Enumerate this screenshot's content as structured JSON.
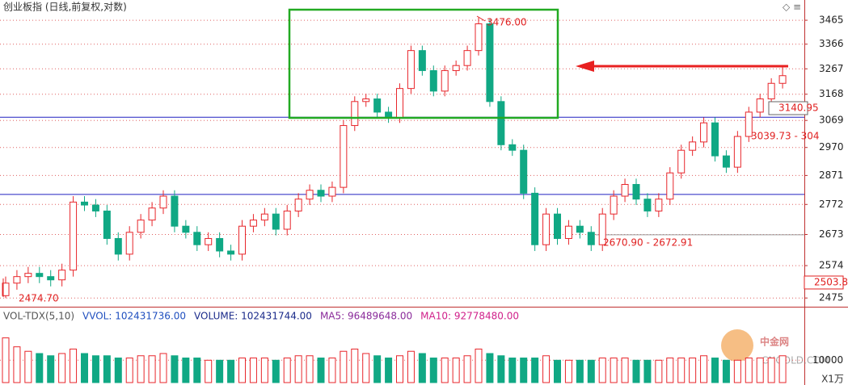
{
  "chart_data": {
    "type": "candlestick",
    "title": "创业板指 (日线,前复权,对数)",
    "log": true,
    "ylim": [
      2449,
      3551
    ],
    "yticks": [
      2475,
      2574,
      2673,
      2772,
      2871,
      2970,
      3069,
      3168,
      3267,
      3366,
      3465
    ],
    "grid": true,
    "up_color": "#e8262b",
    "down_color": "#10a884",
    "series": [
      {
        "name": "open",
        "values": [
          2482,
          2520,
          2540,
          2550,
          2540,
          2530,
          2560,
          2780,
          2770,
          2750,
          2660,
          2610,
          2680,
          2720,
          2760,
          2800,
          2700,
          2680,
          2640,
          2660,
          2620,
          2610,
          2700,
          2720,
          2740,
          2690,
          2750,
          2790,
          2820,
          2800,
          2830,
          3050,
          3140,
          3150,
          3100,
          3080,
          3190,
          3340,
          3260,
          3180,
          3260,
          3280,
          3340,
          3450,
          3140,
          2980,
          2960,
          2810,
          2640,
          2740,
          2660,
          2700,
          2680,
          2640,
          2740,
          2800,
          2840,
          2790,
          2750,
          2790,
          2880,
          2960,
          2990,
          3060,
          2940,
          2900,
          3010,
          3100,
          3150,
          3210
        ]
      },
      {
        "name": "high",
        "values": [
          2540,
          2560,
          2570,
          2570,
          2560,
          2580,
          2800,
          2800,
          2790,
          2770,
          2680,
          2700,
          2740,
          2780,
          2820,
          2820,
          2720,
          2700,
          2680,
          2680,
          2640,
          2720,
          2740,
          2760,
          2760,
          2770,
          2810,
          2840,
          2840,
          2850,
          3070,
          3160,
          3170,
          3170,
          3120,
          3210,
          3360,
          3360,
          3280,
          3280,
          3300,
          3360,
          3476.0,
          3470,
          3160,
          3000,
          2980,
          2830,
          2760,
          2760,
          2720,
          2720,
          2700,
          2760,
          2820,
          2860,
          2860,
          2810,
          2810,
          2900,
          2980,
          3010,
          3080,
          3080,
          2960,
          3030,
          3120,
          3170,
          3230,
          3280
        ]
      },
      {
        "name": "low",
        "values": [
          2474.7,
          2500,
          2520,
          2520,
          2510,
          2510,
          2540,
          2750,
          2730,
          2640,
          2590,
          2590,
          2660,
          2700,
          2740,
          2680,
          2660,
          2620,
          2620,
          2600,
          2590,
          2590,
          2680,
          2700,
          2670,
          2670,
          2730,
          2770,
          2780,
          2780,
          2810,
          3030,
          3120,
          3080,
          3060,
          3060,
          3170,
          3240,
          3160,
          3160,
          3240,
          3260,
          3320,
          3120,
          2960,
          2940,
          2790,
          2620,
          2620,
          2640,
          2640,
          2660,
          2620,
          2620,
          2720,
          2780,
          2770,
          2730,
          2730,
          2770,
          2860,
          2940,
          2970,
          2920,
          2880,
          2880,
          2990,
          3080,
          3130,
          3190
        ]
      },
      {
        "name": "close",
        "values": [
          2520,
          2540,
          2550,
          2540,
          2530,
          2560,
          2780,
          2770,
          2750,
          2660,
          2610,
          2680,
          2720,
          2760,
          2800,
          2700,
          2680,
          2640,
          2660,
          2620,
          2610,
          2700,
          2720,
          2740,
          2690,
          2750,
          2790,
          2820,
          2800,
          2830,
          3050,
          3140,
          3150,
          3100,
          3080,
          3190,
          3340,
          3260,
          3180,
          3260,
          3280,
          3340,
          3450,
          3140,
          2980,
          2960,
          2810,
          2640,
          2740,
          2660,
          2700,
          2680,
          2640,
          2740,
          2800,
          2840,
          2790,
          2750,
          2790,
          2880,
          2960,
          2990,
          3060,
          2940,
          2900,
          3010,
          3100,
          3150,
          3210,
          3240
        ]
      }
    ],
    "hlines": [
      {
        "value": 3081,
        "color": "#2020c0"
      },
      {
        "value": 2806,
        "color": "#2020c0"
      },
      {
        "value": 2672,
        "color": "#999999"
      }
    ],
    "annotations": [
      "3476.00",
      "2474.70",
      "2670.90 - 2672.91",
      "3039.73 - 304",
      "3140.95",
      "2503.8"
    ],
    "volume": {
      "header": [
        {
          "text": "VOL-TDX(5,10)",
          "color": "#555555"
        },
        {
          "text": "VVOL: 102431736.00",
          "color": "#1f4fbf"
        },
        {
          "text": "VOLUME: 102431744.00",
          "color": "#1a2a8a"
        },
        {
          "text": "MA5: 96489648.00",
          "color": "#8a2a9a"
        },
        {
          "text": "MA10: 92778480.00",
          "color": "#d0208a"
        }
      ],
      "unit": "X1万",
      "ylim": [
        0,
        26000
      ],
      "yticks": [
        10000
      ],
      "values": [
        20000,
        16000,
        14000,
        13000,
        12000,
        13000,
        15000,
        13000,
        12000,
        12000,
        11000,
        11000,
        12000,
        12000,
        13000,
        12000,
        11000,
        11000,
        10000,
        10000,
        10000,
        11000,
        11000,
        11000,
        10000,
        11000,
        12000,
        12000,
        11000,
        11000,
        14000,
        15000,
        13000,
        12000,
        11000,
        12000,
        14000,
        13000,
        11000,
        11000,
        11000,
        12000,
        15000,
        13000,
        12000,
        11000,
        11000,
        11000,
        12000,
        10000,
        10000,
        10000,
        10000,
        11000,
        11000,
        11000,
        10000,
        10000,
        10000,
        11000,
        11000,
        11000,
        12000,
        11000,
        10000,
        10000,
        11000,
        11000,
        11000,
        12000
      ]
    },
    "watermark": {
      "name": "中金网",
      "site": "CNGOLD.COM"
    }
  }
}
